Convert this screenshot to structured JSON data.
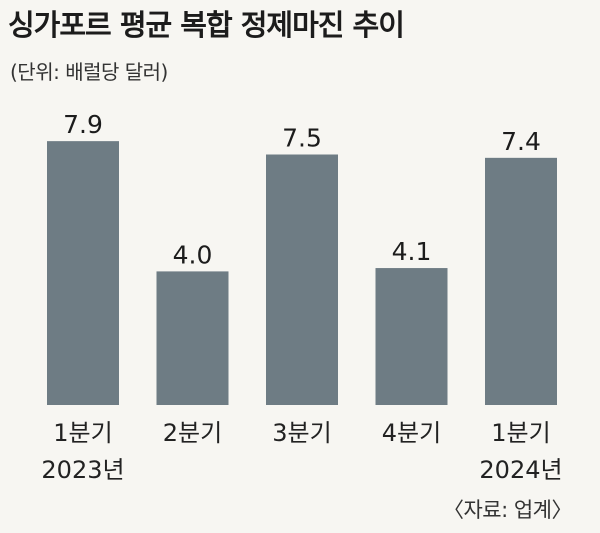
{
  "title": "싱가포르 평균 복합 정제마진 추이",
  "subtitle": "(단위: 배럴당 달러)",
  "source": "〈자료: 업계〉",
  "colors": {
    "bar": "#6e7c84",
    "background": "#f7f6f2",
    "text": "#222222"
  },
  "chart_data": {
    "type": "bar",
    "categories": [
      "1분기",
      "2분기",
      "3분기",
      "4분기",
      "1분기"
    ],
    "category_years": [
      "2023년",
      "",
      "",
      "",
      "2024년"
    ],
    "values": [
      7.9,
      4.0,
      7.5,
      4.1,
      7.4
    ],
    "value_labels": [
      "7.9",
      "4.0",
      "7.5",
      "4.1",
      "7.4"
    ],
    "title": "싱가포르 평균 복합 정제마진 추이",
    "ylabel": "(단위: 배럴당 달러)",
    "grid": false,
    "legend": "none"
  }
}
